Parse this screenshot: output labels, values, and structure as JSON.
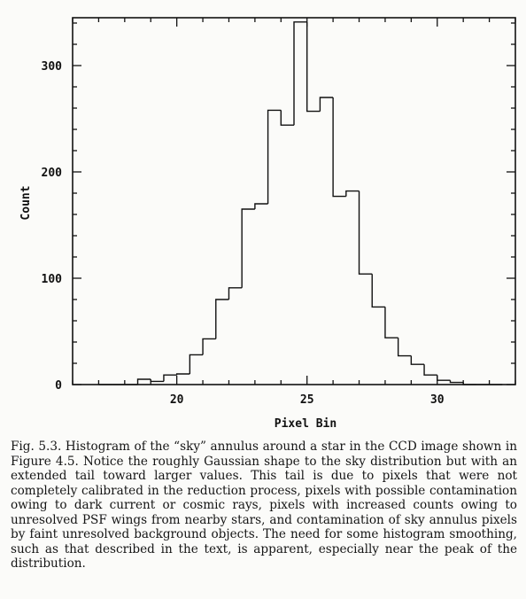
{
  "chart_data": {
    "type": "bar",
    "title": "",
    "xlabel": "Pixel Bin",
    "ylabel": "Count",
    "xlim": [
      16,
      33
    ],
    "ylim": [
      0,
      345
    ],
    "x_ticks": [
      20,
      25,
      30
    ],
    "x_tick_labels": [
      "20",
      "25",
      "30"
    ],
    "y_ticks": [
      0,
      100,
      200,
      300
    ],
    "y_tick_labels": [
      "0",
      "100",
      "200",
      "300"
    ],
    "bin_width": 0.5,
    "bins": [
      {
        "x": 17.0,
        "value": 0
      },
      {
        "x": 17.5,
        "value": 0
      },
      {
        "x": 18.0,
        "value": 0
      },
      {
        "x": 18.5,
        "value": 5
      },
      {
        "x": 19.0,
        "value": 3
      },
      {
        "x": 19.5,
        "value": 9
      },
      {
        "x": 20.0,
        "value": 10
      },
      {
        "x": 20.5,
        "value": 28
      },
      {
        "x": 21.0,
        "value": 43
      },
      {
        "x": 21.5,
        "value": 80
      },
      {
        "x": 22.0,
        "value": 91
      },
      {
        "x": 22.5,
        "value": 165
      },
      {
        "x": 23.0,
        "value": 170
      },
      {
        "x": 23.5,
        "value": 258
      },
      {
        "x": 24.0,
        "value": 244
      },
      {
        "x": 24.5,
        "value": 341
      },
      {
        "x": 25.0,
        "value": 257
      },
      {
        "x": 25.5,
        "value": 270
      },
      {
        "x": 26.0,
        "value": 177
      },
      {
        "x": 26.5,
        "value": 182
      },
      {
        "x": 27.0,
        "value": 104
      },
      {
        "x": 27.5,
        "value": 73
      },
      {
        "x": 28.0,
        "value": 44
      },
      {
        "x": 28.5,
        "value": 27
      },
      {
        "x": 29.0,
        "value": 19
      },
      {
        "x": 29.5,
        "value": 9
      },
      {
        "x": 30.0,
        "value": 4
      },
      {
        "x": 30.5,
        "value": 2
      },
      {
        "x": 31.0,
        "value": 0
      },
      {
        "x": 31.5,
        "value": 0
      },
      {
        "x": 32.0,
        "value": 0
      }
    ],
    "grid": false,
    "legend": "none"
  },
  "caption": "Fig. 5.3. Histogram of the “sky” annulus around a star in the CCD image shown in Figure 4.5. Notice the roughly Gaussian shape to the sky distribution but with an extended tail toward larger values. This tail is due to pixels that were not completely calibrated in the reduction process, pixels with possible contamination owing to dark current or cosmic rays, pixels with increased counts owing to unresolved PSF wings from nearby stars, and contamination of sky annulus pixels by faint unresolved background objects. The need for some histogram smoothing, such as that described in the text, is apparent, especially near the peak of the distribution.",
  "colors": {
    "ink": "#111111",
    "paper": "#fbfbf9"
  }
}
